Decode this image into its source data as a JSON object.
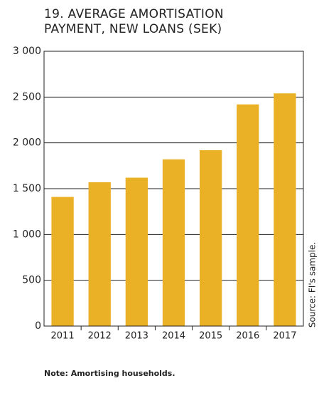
{
  "chart_data": {
    "type": "bar",
    "title": "19. AVERAGE AMORTISATION PAYMENT, NEW LOANS (SEK)",
    "categories": [
      "2011",
      "2012",
      "2013",
      "2014",
      "2015",
      "2016",
      "2017"
    ],
    "values": [
      1410,
      1570,
      1620,
      1820,
      1920,
      2420,
      2540
    ],
    "color": "#ebb126",
    "ylim": [
      0,
      3000
    ],
    "yticks": [
      0,
      500,
      {
        "value": 1000,
        "label": "1 000"
      },
      {
        "value": 1500,
        "label": "1 500"
      },
      {
        "value": 2000,
        "label": "2 000"
      },
      {
        "value": 2500,
        "label": "2 500"
      },
      {
        "value": 3000,
        "label": "3 000"
      }
    ],
    "grid": true,
    "source": "Source: FI's sample.",
    "note": "Note: Amortising households."
  }
}
